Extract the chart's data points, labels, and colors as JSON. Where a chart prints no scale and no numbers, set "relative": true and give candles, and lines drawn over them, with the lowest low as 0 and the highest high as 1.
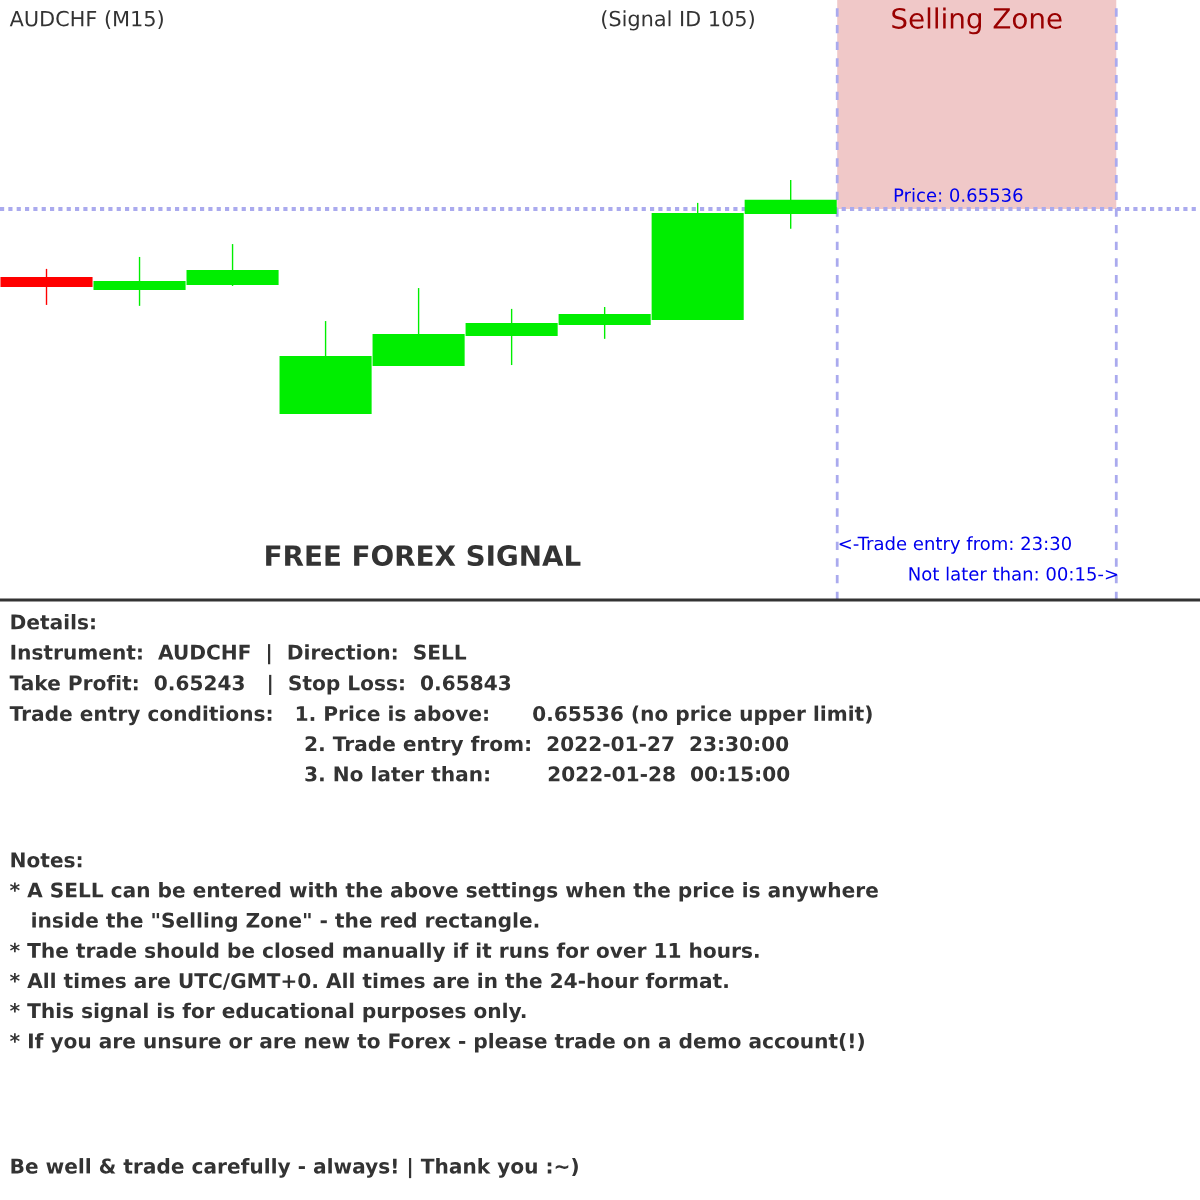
{
  "chart_data": {
    "type": "candlestick",
    "title": "AUDCHF (M15)",
    "subtitle": "(Signal ID 105)",
    "relative": true,
    "categories": [
      null,
      null,
      null,
      null,
      null,
      null,
      null,
      null,
      null
    ],
    "ohlc": [
      [
        0.585,
        0.62,
        0.466,
        0.543
      ],
      [
        0.53,
        0.671,
        0.462,
        0.568
      ],
      [
        0.551,
        0.726,
        0.547,
        0.615
      ],
      [
        0.0,
        0.397,
        0.0,
        0.248
      ],
      [
        0.205,
        0.538,
        0.205,
        0.342
      ],
      [
        0.333,
        0.449,
        0.209,
        0.389
      ],
      [
        0.38,
        0.457,
        0.321,
        0.427
      ],
      [
        0.402,
        0.902,
        0.402,
        0.859
      ],
      [
        0.855,
        1.0,
        0.791,
        0.915
      ]
    ],
    "colors": [
      "#ff0000",
      "#00ee00",
      "#00ee00",
      "#00ee00",
      "#00ee00",
      "#00ee00",
      "#00ee00",
      "#00ee00",
      "#00ee00"
    ],
    "ref_lines": [
      {
        "axis": "y",
        "value": 0.876,
        "color": "#aaaaee",
        "line_style": "dotted"
      }
    ],
    "annotations": [
      "FREE FOREX SIGNAL",
      "Selling Zone",
      "Price: 0.65536",
      "<-Trade entry from: 23:30",
      "Not later than: 00:15->",
      "Details:\nInstrument:  AUDCHF  |  Direction:  SELL\nTake Profit:  0.65243   |  Stop Loss:  0.65843\nTrade entry conditions:   1. Price is above:      0.65536 (no price upper limit)\n                                          2. Trade entry from:  2022-01-27  23:30:00\n                                          3. No later than:        2022-01-28  00:15:00",
      "Notes:\n* A SELL can be entered with the above settings when the price is anywhere\n   inside the \"Selling Zone\" - the red rectangle.\n* The trade should be closed manually if it runs for over 11 hours.\n* All times are UTC/GMT+0. All times are in the 24-hour format.\n* This signal is for educational purposes only.\n* If you are unsure or are new to Forex - please trade on a demo account(!)",
      "Be well & trade carefully - always! | Thank you :~)"
    ]
  }
}
